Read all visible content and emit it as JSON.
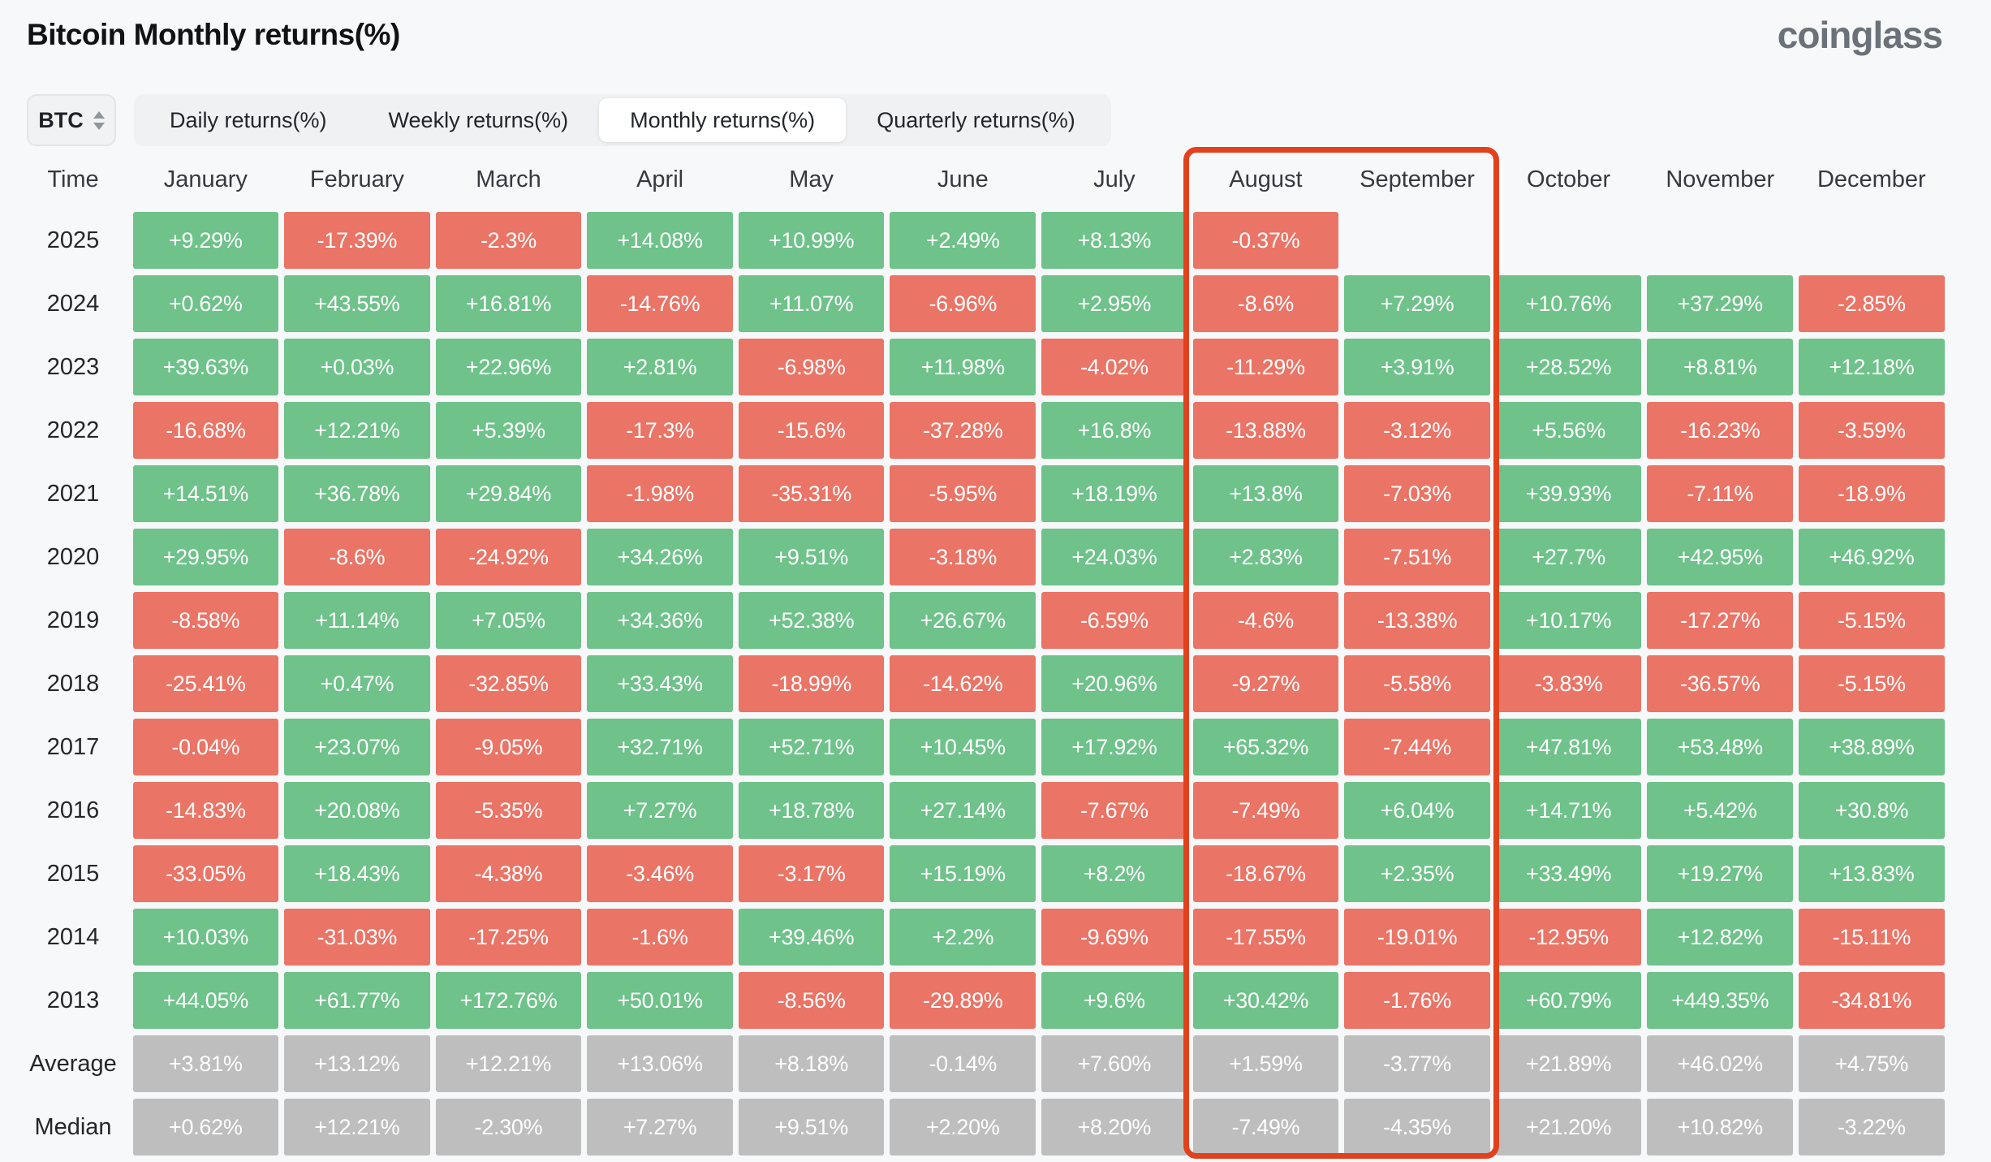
{
  "header": {
    "title": "Bitcoin Monthly returns(%)",
    "logo": "coinglass"
  },
  "controls": {
    "coin": "BTC",
    "tabs": [
      {
        "label": "Daily returns(%)",
        "active": false
      },
      {
        "label": "Weekly returns(%)",
        "active": false
      },
      {
        "label": "Monthly returns(%)",
        "active": true
      },
      {
        "label": "Quarterly returns(%)",
        "active": false
      }
    ]
  },
  "table": {
    "time_header": "Time"
  },
  "chart_data": {
    "type": "table",
    "title": "Bitcoin Monthly returns(%)",
    "columns": [
      "January",
      "February",
      "March",
      "April",
      "May",
      "June",
      "July",
      "August",
      "September",
      "October",
      "November",
      "December"
    ],
    "rows": [
      {
        "label": "2025",
        "kind": "year",
        "values": [
          "+9.29%",
          "-17.39%",
          "-2.3%",
          "+14.08%",
          "+10.99%",
          "+2.49%",
          "+8.13%",
          "-0.37%",
          "",
          "",
          "",
          ""
        ]
      },
      {
        "label": "2024",
        "kind": "year",
        "values": [
          "+0.62%",
          "+43.55%",
          "+16.81%",
          "-14.76%",
          "+11.07%",
          "-6.96%",
          "+2.95%",
          "-8.6%",
          "+7.29%",
          "+10.76%",
          "+37.29%",
          "-2.85%"
        ]
      },
      {
        "label": "2023",
        "kind": "year",
        "values": [
          "+39.63%",
          "+0.03%",
          "+22.96%",
          "+2.81%",
          "-6.98%",
          "+11.98%",
          "-4.02%",
          "-11.29%",
          "+3.91%",
          "+28.52%",
          "+8.81%",
          "+12.18%"
        ]
      },
      {
        "label": "2022",
        "kind": "year",
        "values": [
          "-16.68%",
          "+12.21%",
          "+5.39%",
          "-17.3%",
          "-15.6%",
          "-37.28%",
          "+16.8%",
          "-13.88%",
          "-3.12%",
          "+5.56%",
          "-16.23%",
          "-3.59%"
        ]
      },
      {
        "label": "2021",
        "kind": "year",
        "values": [
          "+14.51%",
          "+36.78%",
          "+29.84%",
          "-1.98%",
          "-35.31%",
          "-5.95%",
          "+18.19%",
          "+13.8%",
          "-7.03%",
          "+39.93%",
          "-7.11%",
          "-18.9%"
        ]
      },
      {
        "label": "2020",
        "kind": "year",
        "values": [
          "+29.95%",
          "-8.6%",
          "-24.92%",
          "+34.26%",
          "+9.51%",
          "-3.18%",
          "+24.03%",
          "+2.83%",
          "-7.51%",
          "+27.7%",
          "+42.95%",
          "+46.92%"
        ]
      },
      {
        "label": "2019",
        "kind": "year",
        "values": [
          "-8.58%",
          "+11.14%",
          "+7.05%",
          "+34.36%",
          "+52.38%",
          "+26.67%",
          "-6.59%",
          "-4.6%",
          "-13.38%",
          "+10.17%",
          "-17.27%",
          "-5.15%"
        ]
      },
      {
        "label": "2018",
        "kind": "year",
        "values": [
          "-25.41%",
          "+0.47%",
          "-32.85%",
          "+33.43%",
          "-18.99%",
          "-14.62%",
          "+20.96%",
          "-9.27%",
          "-5.58%",
          "-3.83%",
          "-36.57%",
          "-5.15%"
        ]
      },
      {
        "label": "2017",
        "kind": "year",
        "values": [
          "-0.04%",
          "+23.07%",
          "-9.05%",
          "+32.71%",
          "+52.71%",
          "+10.45%",
          "+17.92%",
          "+65.32%",
          "-7.44%",
          "+47.81%",
          "+53.48%",
          "+38.89%"
        ]
      },
      {
        "label": "2016",
        "kind": "year",
        "values": [
          "-14.83%",
          "+20.08%",
          "-5.35%",
          "+7.27%",
          "+18.78%",
          "+27.14%",
          "-7.67%",
          "-7.49%",
          "+6.04%",
          "+14.71%",
          "+5.42%",
          "+30.8%"
        ]
      },
      {
        "label": "2015",
        "kind": "year",
        "values": [
          "-33.05%",
          "+18.43%",
          "-4.38%",
          "-3.46%",
          "-3.17%",
          "+15.19%",
          "+8.2%",
          "-18.67%",
          "+2.35%",
          "+33.49%",
          "+19.27%",
          "+13.83%"
        ]
      },
      {
        "label": "2014",
        "kind": "year",
        "values": [
          "+10.03%",
          "-31.03%",
          "-17.25%",
          "-1.6%",
          "+39.46%",
          "+2.2%",
          "-9.69%",
          "-17.55%",
          "-19.01%",
          "-12.95%",
          "+12.82%",
          "-15.11%"
        ]
      },
      {
        "label": "2013",
        "kind": "year",
        "values": [
          "+44.05%",
          "+61.77%",
          "+172.76%",
          "+50.01%",
          "-8.56%",
          "-29.89%",
          "+9.6%",
          "+30.42%",
          "-1.76%",
          "+60.79%",
          "+449.35%",
          "-34.81%"
        ]
      },
      {
        "label": "Average",
        "kind": "stat",
        "values": [
          "+3.81%",
          "+13.12%",
          "+12.21%",
          "+13.06%",
          "+8.18%",
          "-0.14%",
          "+7.60%",
          "+1.59%",
          "-3.77%",
          "+21.89%",
          "+46.02%",
          "+4.75%"
        ]
      },
      {
        "label": "Median",
        "kind": "stat",
        "values": [
          "+0.62%",
          "+12.21%",
          "-2.30%",
          "+7.27%",
          "+9.51%",
          "+2.20%",
          "+8.20%",
          "-7.49%",
          "-4.35%",
          "+21.20%",
          "+10.82%",
          "-3.22%"
        ]
      }
    ],
    "colors": {
      "positive": "#6EC28A",
      "negative": "#EA7466",
      "neutral_stat": "#BEBEBE",
      "highlight_border": "#E2411E"
    },
    "highlight": {
      "columns": [
        "August",
        "September"
      ]
    },
    "legend_position": "none",
    "grid": false
  }
}
